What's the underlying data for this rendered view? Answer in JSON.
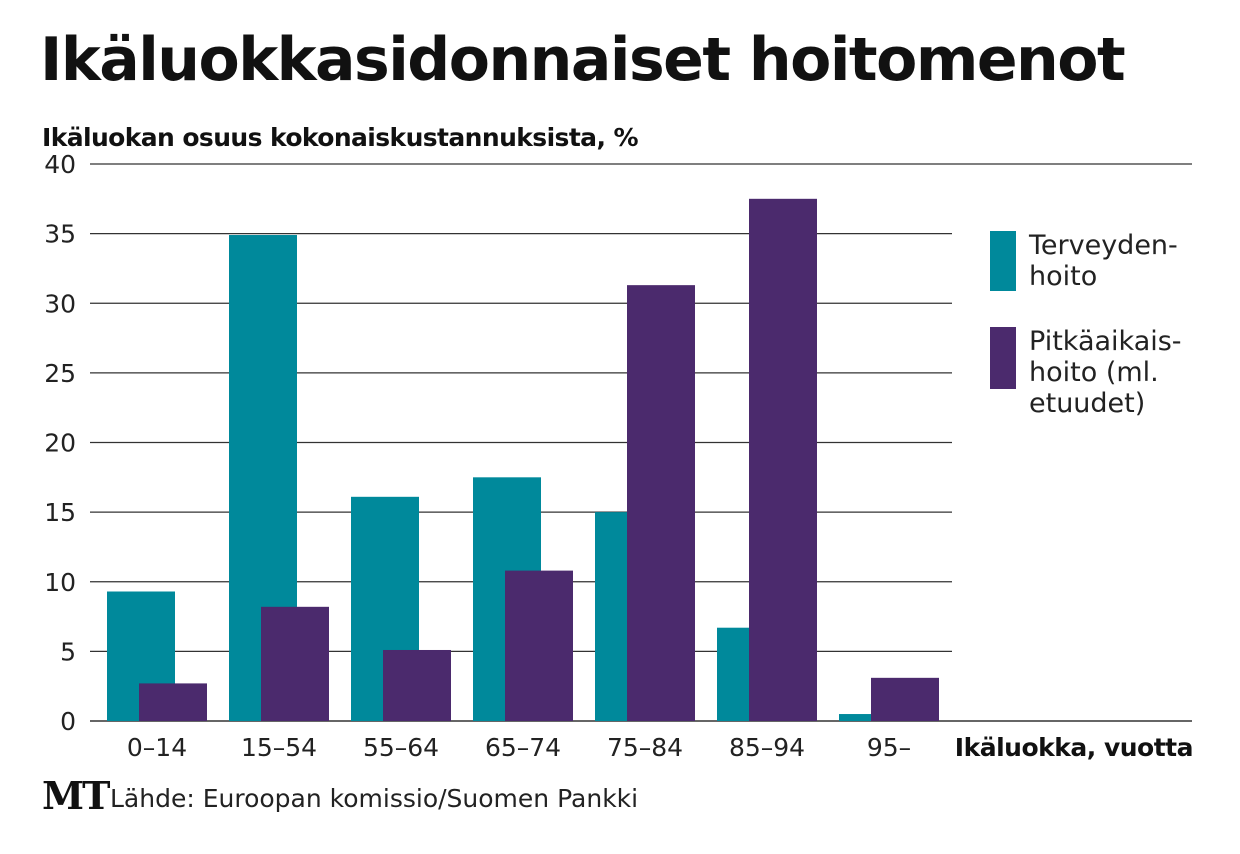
{
  "header": {
    "title": "Ikäluokkasidonnaiset hoitomenot",
    "subtitle": "Ikäluokan  osuus kokonaiskustannuksista, %"
  },
  "footer": {
    "logo": "MT",
    "source": "Lähde: Euroopan komissio/Suomen Pankki"
  },
  "colors": {
    "terveydenhoito": "#00899b",
    "pitkaaikaishoito": "#4b2a6d",
    "grid": "#333333"
  },
  "chart_data": {
    "type": "bar",
    "title": "Ikäluokkasidonnaiset hoitomenot",
    "ylabel": "Ikäluokan  osuus kokonaiskustannuksista, %",
    "xlabel": "Ikäluokka, vuotta",
    "categories": [
      "0–14",
      "15–54",
      "55–64",
      "65–74",
      "75–84",
      "85–94",
      "95–"
    ],
    "ylim": [
      0,
      40
    ],
    "yticks": [
      "0",
      "5",
      "10",
      "15",
      "20",
      "25",
      "30",
      "35",
      "40"
    ],
    "grid": true,
    "legend_position": "right",
    "series": [
      {
        "name": "Terveydenhoito",
        "legend_lines": [
          "Terveyden-",
          "hoito"
        ],
        "color": "#00899b",
        "values": [
          9.3,
          34.9,
          16.1,
          17.5,
          15.0,
          6.7,
          0.5
        ]
      },
      {
        "name": "Pitkäaikaishoito (ml. etuudet)",
        "legend_lines": [
          "Pitkäaikais-",
          "hoito (ml.",
          "etuudet)"
        ],
        "color": "#4b2a6d",
        "values": [
          2.7,
          8.2,
          5.1,
          10.8,
          31.3,
          37.5,
          3.1
        ]
      }
    ]
  }
}
